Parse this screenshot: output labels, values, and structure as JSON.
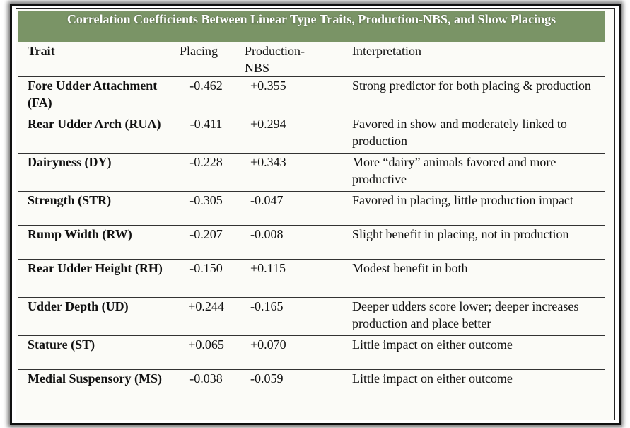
{
  "table": {
    "title": "Correlation Coefficients Between Linear Type Traits, Production-NBS, and Show Placings",
    "headers": {
      "trait": "Trait",
      "placing": "Placing",
      "production": "Production-\nNBS",
      "interpretation": "Interpretation"
    },
    "rows": [
      {
        "trait": "Fore Udder Attachment (FA)",
        "placing": "-0.462",
        "production": "+0.355",
        "interpretation": "Strong predictor for both placing & production"
      },
      {
        "trait": "Rear Udder Arch (RUA)",
        "placing": "-0.411",
        "production": "+0.294",
        "interpretation": "Favored in show and moderately linked to production"
      },
      {
        "trait": "Dairyness (DY)",
        "placing": "-0.228",
        "production": "+0.343",
        "interpretation": "More “dairy” animals favored and more productive"
      },
      {
        "trait": "Strength (STR)",
        "placing": "-0.305",
        "production": "-0.047",
        "interpretation": "Favored in placing, little production impact"
      },
      {
        "trait": "Rump Width (RW)",
        "placing": "-0.207",
        "production": "-0.008",
        "interpretation": "Slight benefit in placing, not in production"
      },
      {
        "trait": "Rear Udder Height (RH)",
        "placing": "-0.150",
        "production": "+0.115",
        "interpretation": "Modest benefit in both"
      },
      {
        "trait": "Udder Depth (UD)",
        "placing": "+0.244",
        "production": "-0.165",
        "interpretation": "Deeper udders score lower; deeper increases production and place better"
      },
      {
        "trait": "Stature (ST)",
        "placing": "+0.065",
        "production": "+0.070",
        "interpretation": "Little impact on either outcome"
      },
      {
        "trait": "Medial Suspensory (MS)",
        "placing": "-0.038",
        "production": "-0.059",
        "interpretation": "Little impact on either outcome"
      }
    ]
  }
}
